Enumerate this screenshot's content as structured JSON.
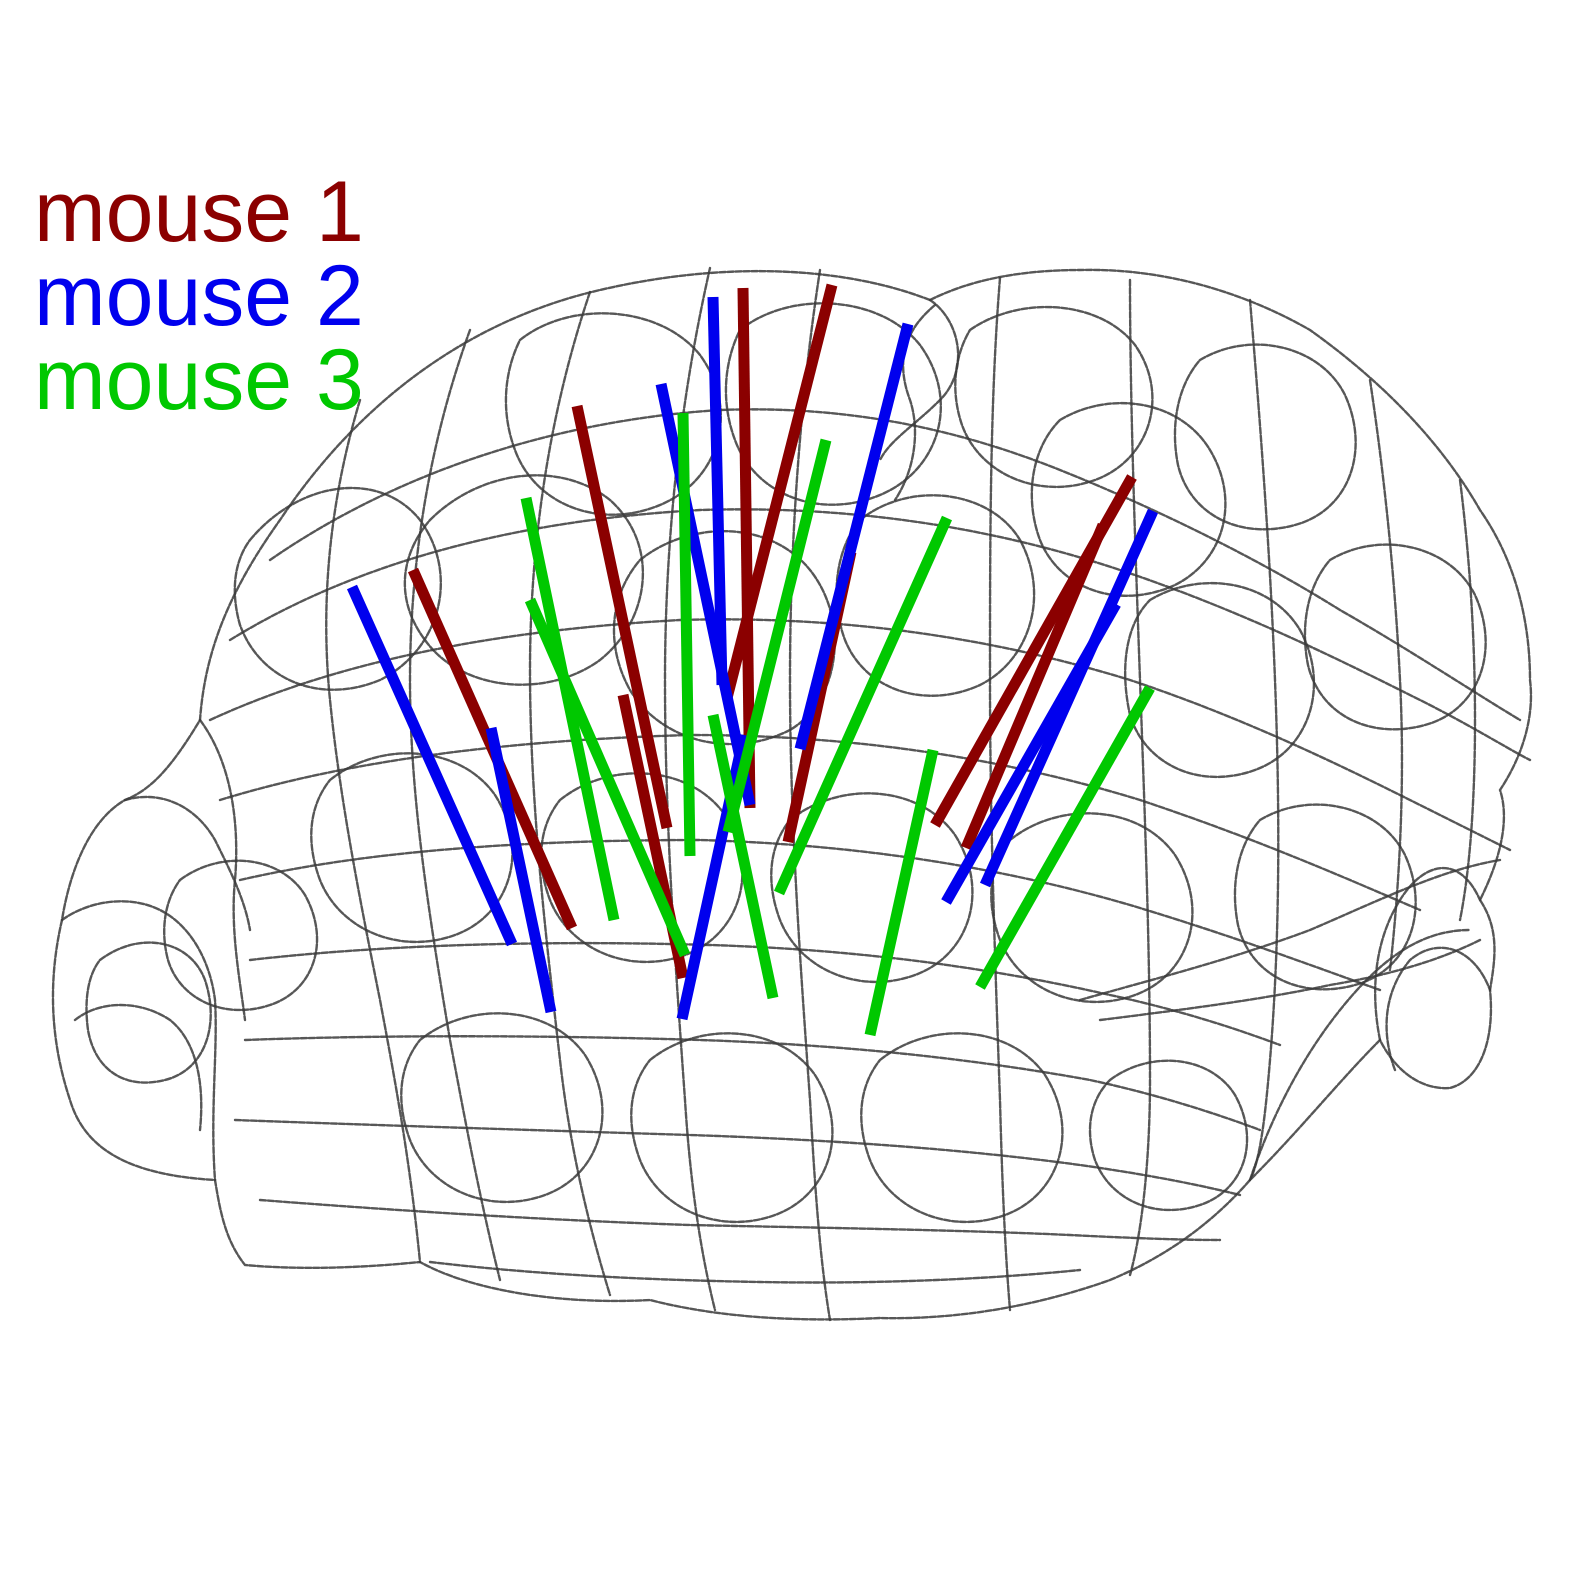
{
  "legend": [
    {
      "label": "mouse 1",
      "color": "#8b0000"
    },
    {
      "label": "mouse 2",
      "color": "#0000ee"
    },
    {
      "label": "mouse 3",
      "color": "#00c800"
    }
  ],
  "icons": [
    "brain-wireframe-outline"
  ]
}
